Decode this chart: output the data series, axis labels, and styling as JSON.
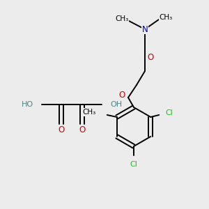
{
  "bg_color": "#ececec",
  "bond_color": "#000000",
  "o_color": "#cc0000",
  "n_color": "#0000bb",
  "cl_color": "#22bb22",
  "ho_color": "#4a8585",
  "bond_width": 1.4,
  "fig_width": 3.0,
  "fig_height": 3.0,
  "dpi": 100,
  "xlim": [
    0,
    300
  ],
  "ylim": [
    0,
    300
  ]
}
